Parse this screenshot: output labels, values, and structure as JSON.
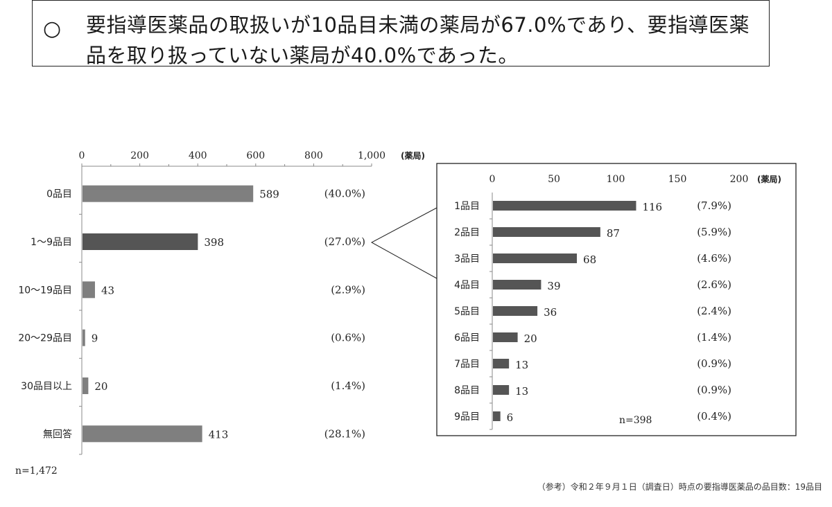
{
  "headline": {
    "mark": "○",
    "text": "要指導医薬品の取扱いが10品目未満の薬局が67.0%であり、要指導医薬品を取り扱っていない薬局が40.0%であった。"
  },
  "footnote": "（参考）令和２年９月１日（調査日）時点の要指導医薬品の品目数：19品目",
  "colors": {
    "bar_light": "#7f7f7f",
    "bar_dark": "#555555",
    "axis": "#888888",
    "frame": "#222222"
  },
  "chart_data": [
    {
      "type": "bar",
      "orientation": "horizontal",
      "unit_label": "(薬局)",
      "xlim": [
        0,
        1000
      ],
      "ticks": [
        "0",
        "200",
        "400",
        "600",
        "800",
        "1,000"
      ],
      "tick_values": [
        0,
        200,
        400,
        600,
        800,
        1000
      ],
      "categories": [
        "0品目",
        "1〜9品目",
        "10〜19品目",
        "20〜29品目",
        "30品目以上",
        "無回答"
      ],
      "values": [
        589,
        398,
        43,
        9,
        20,
        413
      ],
      "value_labels": [
        "589",
        "398",
        "43",
        "9",
        "20",
        "413"
      ],
      "percent_labels": [
        "(40.0%)",
        "(27.0%)",
        "(2.9%)",
        "(0.6%)",
        "(1.4%)",
        "(28.1%)"
      ],
      "highlight_index": 1,
      "n_label": "n=1,472"
    },
    {
      "type": "bar",
      "orientation": "horizontal",
      "unit_label": "(薬局)",
      "xlim": [
        0,
        200
      ],
      "ticks": [
        "0",
        "50",
        "100",
        "150",
        "200"
      ],
      "tick_values": [
        0,
        50,
        100,
        150,
        200
      ],
      "categories": [
        "1品目",
        "2品目",
        "3品目",
        "4品目",
        "5品目",
        "6品目",
        "7品目",
        "8品目",
        "9品目"
      ],
      "values": [
        116,
        87,
        68,
        39,
        36,
        20,
        13,
        13,
        6
      ],
      "value_labels": [
        "116",
        "87",
        "68",
        "39",
        "36",
        "20",
        "13",
        "13",
        "6"
      ],
      "percent_labels": [
        "(7.9%)",
        "(5.9%)",
        "(4.6%)",
        "(2.6%)",
        "(2.4%)",
        "(1.4%)",
        "(0.9%)",
        "(0.9%)",
        "(0.4%)"
      ],
      "n_label": "n=398"
    }
  ]
}
